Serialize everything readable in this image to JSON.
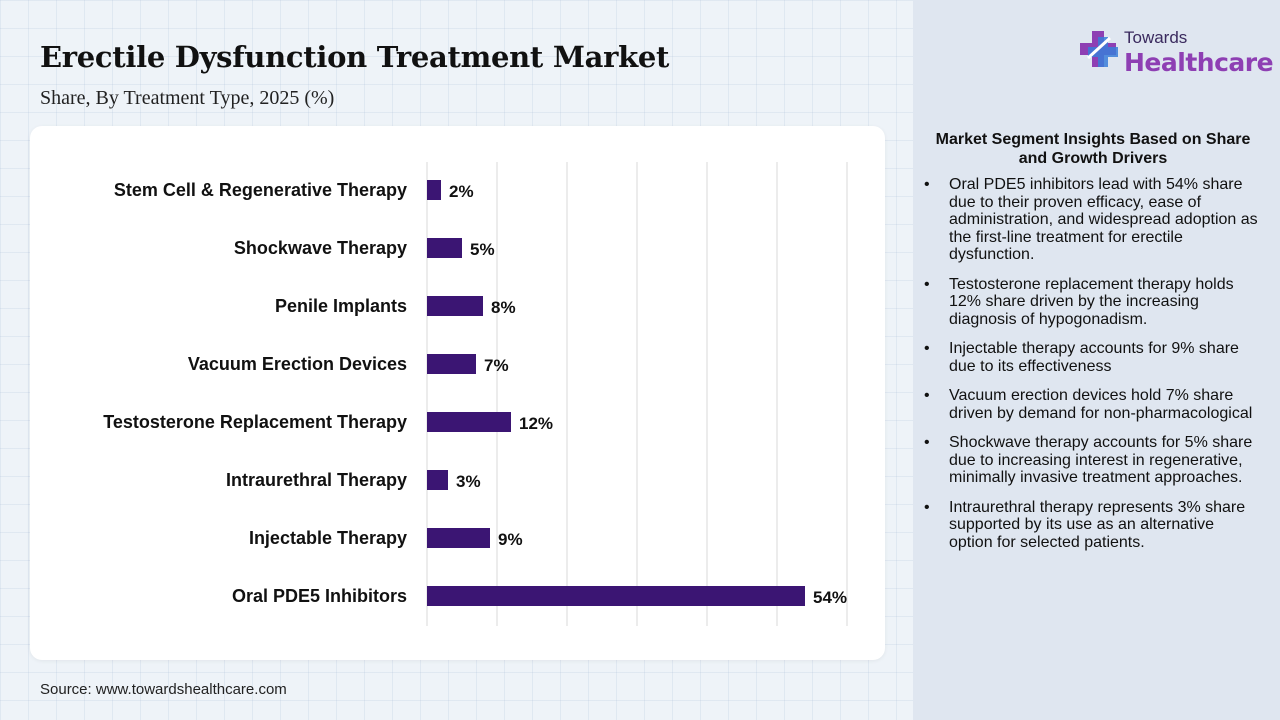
{
  "header": {
    "title": "Erectile Dysfunction Treatment Market",
    "subtitle": "Share, By Treatment Type, 2025 (%)"
  },
  "logo": {
    "line1": "Towards",
    "line2": "Healthcare",
    "icon": "cross-plus-icon",
    "colors": [
      "#8e3fb3",
      "#3b7dd8",
      "#3a2a5e"
    ]
  },
  "chart_data": {
    "type": "bar",
    "orientation": "horizontal",
    "categories": [
      "Stem Cell & Regenerative Therapy",
      "Shockwave Therapy",
      "Penile Implants",
      "Vacuum Erection Devices",
      "Testosterone Replacement Therapy",
      "Intraurethral Therapy",
      "Injectable Therapy",
      "Oral PDE5 Inhibitors"
    ],
    "values": [
      2,
      5,
      8,
      7,
      12,
      3,
      9,
      54
    ],
    "data_labels": [
      "2%",
      "5%",
      "8%",
      "7%",
      "12%",
      "3%",
      "9%",
      "54%"
    ],
    "xlim": [
      0,
      60
    ],
    "grid": true,
    "bar_color": "#3b1573",
    "title": "",
    "xlabel": "",
    "ylabel": ""
  },
  "insights": {
    "title": "Market Segment Insights Based on Share and Growth Drivers",
    "items": [
      "Oral PDE5 inhibitors lead with 54% share due to their proven efficacy, ease of administration, and widespread adoption as the first-line treatment for erectile dysfunction.",
      "Testosterone replacement therapy holds 12% share driven by the increasing diagnosis of hypogonadism.",
      "Injectable therapy accounts for 9% share due to its effectiveness",
      "Vacuum erection devices hold 7% share driven by demand for non-pharmacological",
      "Shockwave therapy accounts for 5% share due to increasing interest in regenerative, minimally invasive treatment approaches.",
      "Intraurethral therapy represents 3% share supported by its use as an alternative option for selected patients."
    ]
  },
  "footer": {
    "source": "Source: www.towardshealthcare.com"
  }
}
